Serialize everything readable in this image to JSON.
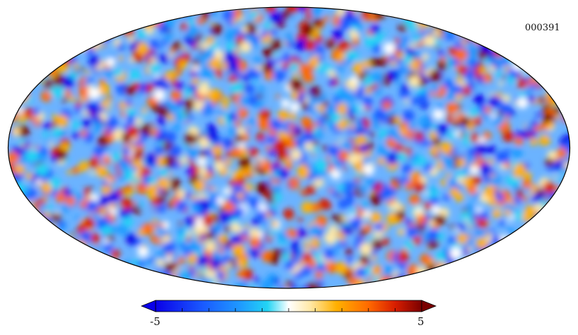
{
  "figure": {
    "map_id": "000391",
    "projection": "mollweide",
    "colorbar": {
      "min_label": "-5",
      "max_label": "5",
      "min": -5,
      "max": 5,
      "extend": "both",
      "colors": [
        "#0a00e8",
        "#1a5bff",
        "#1f9bff",
        "#22d4f4",
        "#ffffff",
        "#ffe9a8",
        "#ffb000",
        "#ff6a00",
        "#d81e00",
        "#7a0000"
      ]
    }
  }
}
